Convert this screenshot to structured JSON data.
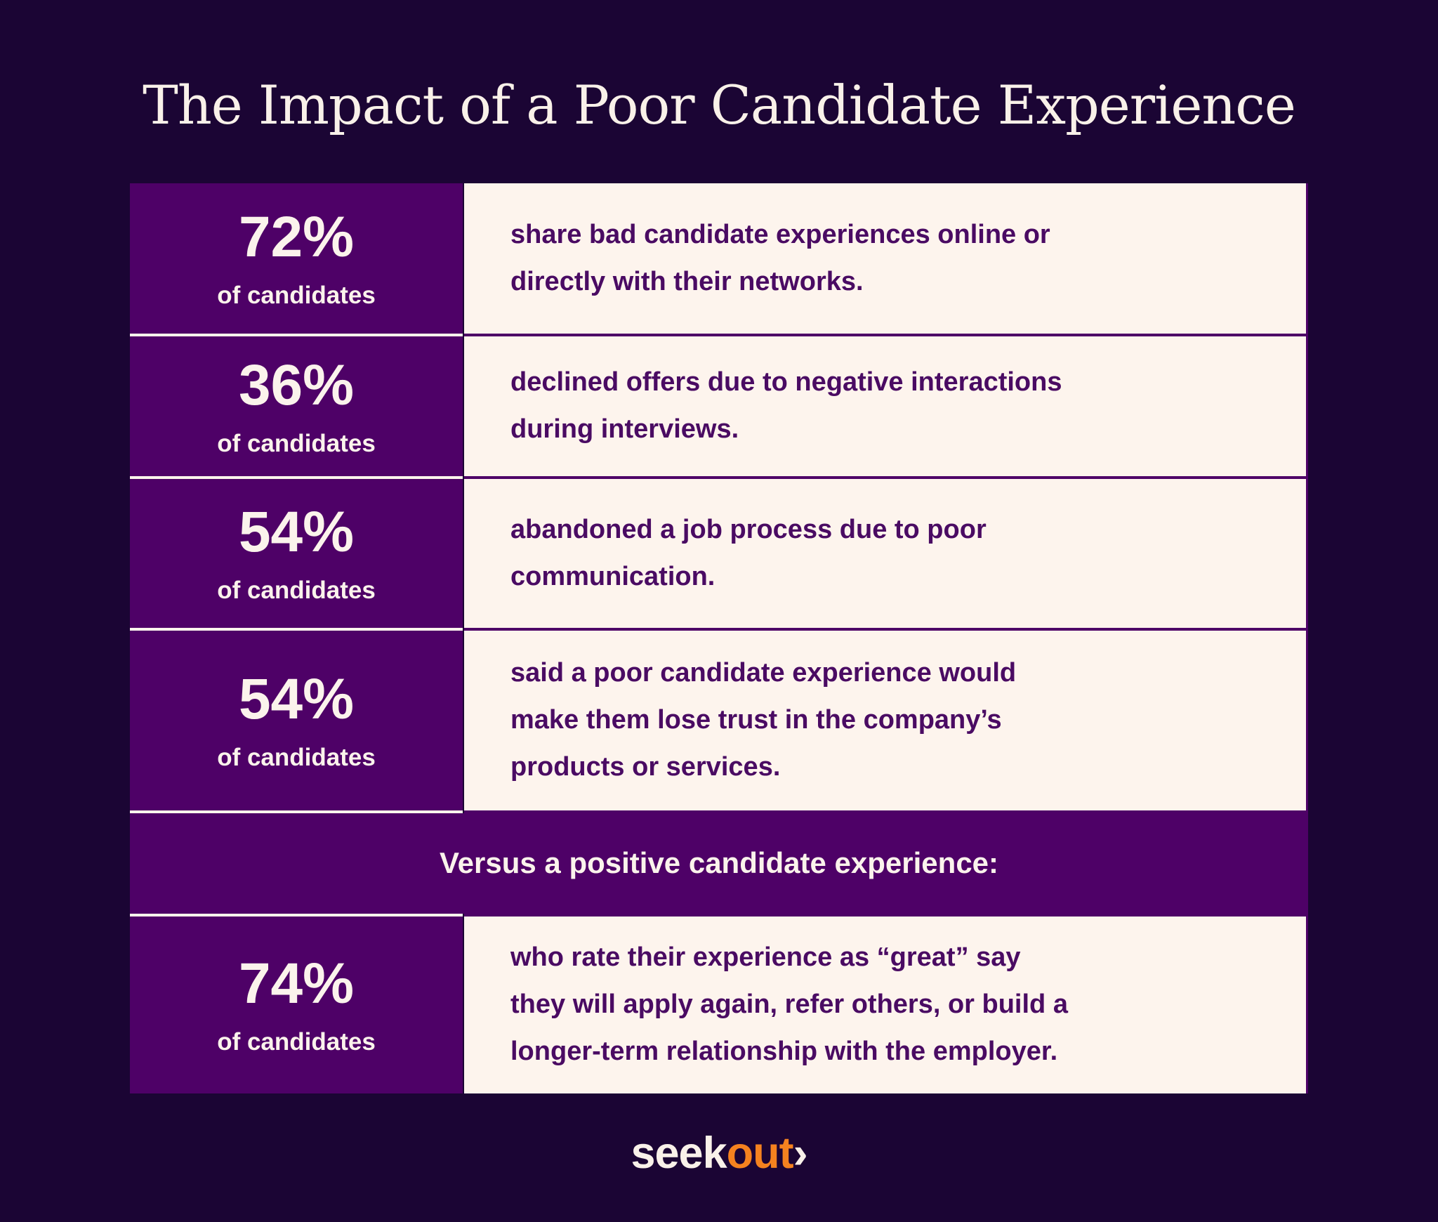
{
  "page": {
    "title": "The Impact of a Poor Candidate Experience"
  },
  "table": {
    "versus_label": "Versus a positive candidate experience:",
    "rows": [
      {
        "stat": "72%",
        "label": "of candidates",
        "lines": [
          "share bad candidate experiences online or",
          "directly with their networks."
        ]
      },
      {
        "stat": "36%",
        "label": "of candidates",
        "lines": [
          "declined offers due to negative interactions",
          "during interviews."
        ]
      },
      {
        "stat": "54%",
        "label": "of candidates",
        "lines": [
          "abandoned a job process due to poor",
          "communication."
        ]
      },
      {
        "stat": "54%",
        "label": "of candidates",
        "lines": [
          "said a poor candidate experience would",
          "make them lose trust in the company’s",
          "products or services."
        ]
      },
      {
        "stat": "74%",
        "label": "of candidates",
        "lines": [
          "who rate their experience as “great” say",
          "they will apply again, refer others, or build a",
          "longer-term relationship with the employer."
        ]
      }
    ]
  },
  "chart_data": {
    "type": "table",
    "title": "The Impact of a Poor Candidate Experience",
    "columns": [
      "share of candidates (%)",
      "finding"
    ],
    "rows": [
      {
        "value_pct": 72,
        "group": "of candidates",
        "section": "poor experience",
        "finding": "share bad candidate experiences online or directly with their networks."
      },
      {
        "value_pct": 36,
        "group": "of candidates",
        "section": "poor experience",
        "finding": "declined offers due to negative interactions during interviews."
      },
      {
        "value_pct": 54,
        "group": "of candidates",
        "section": "poor experience",
        "finding": "abandoned a job process due to poor communication."
      },
      {
        "value_pct": 54,
        "group": "of candidates",
        "section": "poor experience",
        "finding": "said a poor candidate experience would make them lose trust in the company’s products or services."
      },
      {
        "value_pct": 74,
        "group": "of candidates",
        "section": "positive experience",
        "finding": "who rate their experience as “great” say they will apply again, refer others, or build a longer-term relationship with the employer."
      }
    ],
    "section_divider": "Versus a positive candidate experience:"
  },
  "footer": {
    "logo": {
      "seek": "seek",
      "out": "out",
      "chevron": "›"
    }
  },
  "colors": {
    "background": "#1b0534",
    "cell_purple": "#4e0167",
    "cream": "#fdf4ed",
    "text_purple": "#4a0b63",
    "text_cream": "#fbf3ec",
    "logo_orange": "#f5821f"
  }
}
